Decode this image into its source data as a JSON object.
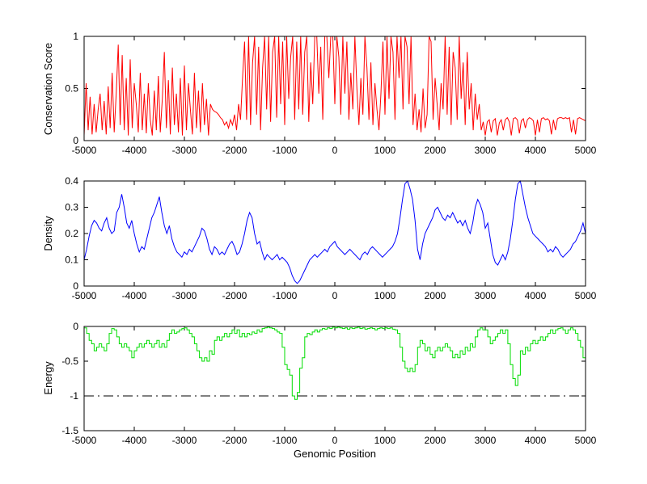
{
  "figure": {
    "background": "#ffffff",
    "axis_color": "#000000",
    "threshold_color": "#000000"
  },
  "chart_data": [
    {
      "type": "line",
      "series_name": "Conservation Score",
      "ylabel": "Conservation Score",
      "xlabel": "",
      "color": "#ff0000",
      "line_type": "line",
      "grid": false,
      "xlim": [
        -5000,
        5000
      ],
      "ylim": [
        0,
        1
      ],
      "xticks": [
        -5000,
        -4000,
        -3000,
        -2000,
        -1000,
        0,
        1000,
        2000,
        3000,
        4000,
        5000
      ],
      "xtick_labels": [
        "-5000",
        "-4000",
        "-3000",
        "-2000",
        "-1000",
        "0",
        "1000",
        "2000",
        "3000",
        "4000",
        "5000"
      ],
      "yticks": [
        0,
        0.5,
        1
      ],
      "ytick_labels": [
        "0",
        "0.5",
        "1"
      ],
      "x_start": -5000,
      "x_step": 40,
      "values": [
        0.05,
        0.55,
        0.1,
        0.42,
        0.06,
        0.35,
        0.08,
        0.3,
        0.45,
        0.1,
        0.38,
        0.06,
        0.52,
        0.12,
        0.65,
        0.08,
        0.45,
        0.92,
        0.15,
        0.82,
        0.1,
        0.6,
        0.05,
        0.78,
        0.12,
        0.55,
        0.35,
        0.08,
        0.65,
        0.1,
        0.45,
        0.07,
        0.55,
        0.2,
        0.05,
        0.48,
        0.1,
        0.62,
        0.08,
        0.4,
        0.85,
        0.12,
        0.58,
        0.06,
        0.7,
        0.15,
        0.45,
        0.08,
        0.6,
        0.05,
        0.72,
        0.1,
        0.55,
        0.3,
        0.06,
        0.65,
        0.12,
        0.48,
        0.08,
        0.55,
        0.15,
        0.4,
        0.05,
        0.35,
        0.3,
        0.28,
        0.27,
        0.25,
        0.22,
        0.2,
        0.15,
        0.18,
        0.12,
        0.2,
        0.15,
        0.25,
        0.1,
        0.35,
        0.2,
        0.6,
        0.95,
        0.2,
        1.0,
        0.15,
        0.75,
        1.0,
        0.25,
        0.9,
        0.1,
        0.7,
        1.0,
        0.3,
        1.0,
        0.18,
        0.85,
        1.0,
        0.22,
        1.0,
        0.35,
        0.95,
        0.15,
        1.0,
        0.4,
        0.8,
        1.0,
        0.2,
        0.95,
        0.3,
        1.0,
        0.25,
        0.85,
        1.0,
        0.18,
        0.75,
        0.35,
        1.0,
        1.0,
        0.45,
        0.9,
        0.2,
        1.0,
        1.0,
        0.6,
        1.0,
        1.0,
        0.35,
        1.0,
        0.8,
        0.25,
        1.0,
        0.45,
        0.95,
        0.2,
        0.65,
        0.3,
        1.0,
        0.5,
        0.15,
        0.6,
        0.25,
        1.0,
        0.7,
        0.2,
        0.75,
        0.15,
        0.55,
        0.3,
        0.1,
        0.45,
        0.95,
        0.25,
        1.0,
        0.4,
        1.0,
        0.85,
        0.2,
        1.0,
        0.6,
        1.0,
        0.3,
        1.0,
        0.9,
        0.35,
        1.0,
        0.15,
        0.45,
        0.1,
        0.3,
        0.08,
        0.5,
        0.12,
        0.25,
        1.0,
        0.95,
        0.2,
        0.6,
        0.35,
        0.1,
        0.55,
        0.3,
        1.0,
        0.25,
        0.9,
        0.15,
        0.85,
        0.7,
        0.2,
        1.0,
        0.4,
        0.75,
        0.15,
        0.85,
        0.3,
        0.55,
        0.1,
        0.45,
        0.2,
        0.35,
        0.1,
        0.18,
        0.05,
        0.18,
        0.2,
        0.08,
        0.19,
        0.21,
        0.05,
        0.17,
        0.2,
        0.1,
        0.2,
        0.22,
        0.18,
        0.05,
        0.21,
        0.22,
        0.2,
        0.07,
        0.19,
        0.21,
        0.12,
        0.2,
        0.22,
        0.21,
        0.19,
        0.05,
        0.2,
        0.08,
        0.21,
        0.22,
        0.2,
        0.21,
        0.19,
        0.06,
        0.2,
        0.1,
        0.21,
        0.22,
        0.22,
        0.21,
        0.22,
        0.21,
        0.22,
        0.08,
        0.2,
        0.06,
        0.21,
        0.22,
        0.21,
        0.2,
        0.19
      ]
    },
    {
      "type": "line",
      "series_name": "Density",
      "ylabel": "Density",
      "xlabel": "",
      "color": "#0000ff",
      "line_type": "line",
      "grid": false,
      "xlim": [
        -5000,
        5000
      ],
      "ylim": [
        0,
        0.4
      ],
      "xticks": [
        -5000,
        -4000,
        -3000,
        -2000,
        -1000,
        0,
        1000,
        2000,
        3000,
        4000,
        5000
      ],
      "xtick_labels": [
        "-5000",
        "-4000",
        "-3000",
        "-2000",
        "-1000",
        "0",
        "1000",
        "2000",
        "3000",
        "4000",
        "5000"
      ],
      "yticks": [
        0,
        0.1,
        0.2,
        0.3,
        0.4
      ],
      "ytick_labels": [
        "0",
        "0.1",
        "0.2",
        "0.3",
        "0.4"
      ],
      "x_start": -5000,
      "x_step": 50,
      "values": [
        0.1,
        0.14,
        0.19,
        0.23,
        0.25,
        0.24,
        0.22,
        0.21,
        0.24,
        0.26,
        0.22,
        0.2,
        0.21,
        0.28,
        0.3,
        0.35,
        0.3,
        0.24,
        0.22,
        0.25,
        0.2,
        0.16,
        0.13,
        0.15,
        0.14,
        0.18,
        0.22,
        0.26,
        0.28,
        0.31,
        0.34,
        0.28,
        0.23,
        0.2,
        0.23,
        0.18,
        0.15,
        0.13,
        0.12,
        0.11,
        0.13,
        0.12,
        0.14,
        0.13,
        0.15,
        0.17,
        0.19,
        0.22,
        0.21,
        0.18,
        0.14,
        0.12,
        0.15,
        0.14,
        0.12,
        0.13,
        0.12,
        0.14,
        0.16,
        0.17,
        0.15,
        0.12,
        0.13,
        0.16,
        0.2,
        0.25,
        0.28,
        0.26,
        0.2,
        0.16,
        0.17,
        0.13,
        0.1,
        0.12,
        0.11,
        0.1,
        0.11,
        0.12,
        0.1,
        0.11,
        0.1,
        0.09,
        0.07,
        0.04,
        0.02,
        0.01,
        0.02,
        0.04,
        0.06,
        0.08,
        0.1,
        0.11,
        0.12,
        0.11,
        0.12,
        0.13,
        0.14,
        0.13,
        0.15,
        0.16,
        0.17,
        0.15,
        0.14,
        0.13,
        0.12,
        0.13,
        0.14,
        0.13,
        0.12,
        0.11,
        0.1,
        0.12,
        0.13,
        0.12,
        0.14,
        0.15,
        0.14,
        0.13,
        0.12,
        0.11,
        0.12,
        0.13,
        0.14,
        0.15,
        0.17,
        0.2,
        0.26,
        0.33,
        0.39,
        0.4,
        0.37,
        0.33,
        0.25,
        0.14,
        0.1,
        0.16,
        0.2,
        0.22,
        0.24,
        0.26,
        0.29,
        0.3,
        0.28,
        0.26,
        0.25,
        0.27,
        0.26,
        0.28,
        0.26,
        0.24,
        0.25,
        0.23,
        0.25,
        0.22,
        0.2,
        0.24,
        0.3,
        0.33,
        0.31,
        0.28,
        0.22,
        0.24,
        0.18,
        0.12,
        0.09,
        0.08,
        0.1,
        0.12,
        0.1,
        0.13,
        0.18,
        0.25,
        0.33,
        0.39,
        0.4,
        0.35,
        0.3,
        0.26,
        0.23,
        0.2,
        0.19,
        0.18,
        0.17,
        0.16,
        0.15,
        0.13,
        0.14,
        0.13,
        0.15,
        0.14,
        0.12,
        0.11,
        0.12,
        0.13,
        0.14,
        0.16,
        0.17,
        0.19,
        0.21,
        0.24,
        0.2
      ]
    },
    {
      "type": "line",
      "series_name": "Energy",
      "ylabel": "Energy",
      "xlabel": "Genomic Position",
      "color": "#00dd00",
      "line_type": "stairs",
      "grid": false,
      "xlim": [
        -5000,
        5000
      ],
      "ylim": [
        -1.5,
        0
      ],
      "xticks": [
        -5000,
        -4000,
        -3000,
        -2000,
        -1000,
        0,
        1000,
        2000,
        3000,
        4000,
        5000
      ],
      "xtick_labels": [
        "-5000",
        "-4000",
        "-3000",
        "-2000",
        "-1000",
        "0",
        "1000",
        "2000",
        "3000",
        "4000",
        "5000"
      ],
      "yticks": [
        -1.5,
        -1,
        -0.5,
        0
      ],
      "ytick_labels": [
        "-1.5",
        "-1",
        "-0.5",
        "0"
      ],
      "x_start": -5000,
      "x_step": 50,
      "reference_line": {
        "y": -1,
        "style": "dash-dot",
        "color": "#000000"
      },
      "values": [
        -0.02,
        -0.1,
        -0.2,
        -0.25,
        -0.35,
        -0.3,
        -0.25,
        -0.3,
        -0.35,
        -0.25,
        -0.1,
        -0.03,
        -0.05,
        -0.15,
        -0.25,
        -0.3,
        -0.25,
        -0.3,
        -0.35,
        -0.45,
        -0.35,
        -0.3,
        -0.25,
        -0.3,
        -0.25,
        -0.2,
        -0.25,
        -0.3,
        -0.25,
        -0.2,
        -0.3,
        -0.25,
        -0.3,
        -0.2,
        -0.1,
        -0.05,
        -0.1,
        -0.08,
        -0.05,
        -0.03,
        -0.02,
        -0.05,
        -0.1,
        -0.15,
        -0.25,
        -0.35,
        -0.45,
        -0.5,
        -0.45,
        -0.5,
        -0.35,
        -0.4,
        -0.2,
        -0.15,
        -0.2,
        -0.15,
        -0.1,
        -0.15,
        -0.1,
        -0.05,
        -0.1,
        -0.05,
        -0.15,
        -0.1,
        -0.15,
        -0.1,
        -0.12,
        -0.08,
        -0.1,
        -0.05,
        -0.08,
        -0.03,
        -0.02,
        -0.01,
        -0.02,
        -0.03,
        -0.05,
        -0.08,
        -0.1,
        -0.3,
        -0.55,
        -0.62,
        -0.7,
        -1.0,
        -1.05,
        -0.95,
        -0.6,
        -0.45,
        -0.15,
        -0.1,
        -0.12,
        -0.08,
        -0.05,
        -0.08,
        -0.05,
        -0.03,
        -0.04,
        -0.02,
        -0.03,
        -0.01,
        -0.02,
        -0.01,
        -0.02,
        -0.03,
        -0.02,
        -0.04,
        -0.02,
        -0.03,
        -0.02,
        -0.01,
        -0.03,
        -0.02,
        -0.04,
        -0.03,
        -0.02,
        -0.03,
        -0.05,
        -0.03,
        -0.02,
        -0.03,
        -0.02,
        -0.03,
        -0.02,
        -0.04,
        -0.05,
        -0.1,
        -0.3,
        -0.5,
        -0.6,
        -0.65,
        -0.6,
        -0.65,
        -0.55,
        -0.3,
        -0.2,
        -0.25,
        -0.35,
        -0.3,
        -0.4,
        -0.45,
        -0.35,
        -0.3,
        -0.35,
        -0.3,
        -0.25,
        -0.3,
        -0.35,
        -0.45,
        -0.4,
        -0.45,
        -0.35,
        -0.4,
        -0.3,
        -0.35,
        -0.25,
        -0.3,
        -0.15,
        -0.05,
        -0.02,
        -0.05,
        -0.05,
        -0.15,
        -0.25,
        -0.2,
        -0.15,
        -0.1,
        -0.05,
        -0.1,
        -0.05,
        -0.25,
        -0.55,
        -0.75,
        -0.85,
        -0.7,
        -0.35,
        -0.4,
        -0.3,
        -0.35,
        -0.25,
        -0.2,
        -0.25,
        -0.2,
        -0.15,
        -0.2,
        -0.15,
        -0.1,
        -0.05,
        -0.1,
        -0.05,
        -0.03,
        -0.02,
        -0.05,
        -0.1,
        -0.05,
        -0.02,
        -0.05,
        -0.1,
        -0.2,
        -0.3,
        -0.45,
        -0.65
      ]
    }
  ]
}
